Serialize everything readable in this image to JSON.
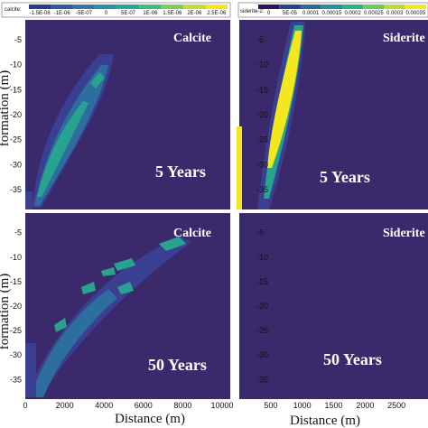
{
  "chart_data": [
    {
      "type": "heatmap",
      "panel": "top-left",
      "mineral_label": "Calcite",
      "time_label": "5 Years",
      "colorbar_label": "calcite:",
      "colorbar_ticks": [
        "-1.5E-06",
        "-1E-06",
        "-5E-07",
        "0",
        "5E-07",
        "1E-06",
        "1.5E-06",
        "2E-06",
        "2.5E-06"
      ],
      "colorbar_colors": [
        "#2a3c86",
        "#2f5b9e",
        "#3573a8",
        "#2d8fa6",
        "#23a797",
        "#3bbd7e",
        "#7ccf56",
        "#c2dd34",
        "#f4e61f"
      ],
      "ylabel": "formation (m)",
      "yticks": [
        "-5",
        "-10",
        "-15",
        "-20",
        "-25",
        "-30",
        "-35"
      ],
      "xlim": [
        0,
        10000
      ],
      "ylim": [
        -39,
        -1
      ]
    },
    {
      "type": "heatmap",
      "panel": "top-right",
      "mineral_label": "Siderite",
      "time_label": "5 Years",
      "colorbar_label": "siderite-2:",
      "colorbar_ticks": [
        "0",
        "5E-05",
        "0.0001",
        "0.00015",
        "0.0002",
        "0.00025",
        "0.0003",
        "0.00035"
      ],
      "colorbar_colors": [
        "#30115a",
        "#2c3f8a",
        "#2b6a98",
        "#27909a",
        "#2ab383",
        "#6acb5b",
        "#b9dc35",
        "#f4e61f"
      ],
      "yticks": [
        "-5",
        "-10",
        "-15",
        "-20",
        "-25",
        "-30",
        "-35"
      ],
      "xlim": [
        0,
        3000
      ],
      "ylim": [
        -39,
        -1
      ]
    },
    {
      "type": "heatmap",
      "panel": "bottom-left",
      "mineral_label": "Calcite",
      "time_label": "50 Years",
      "ylabel": "formation (m)",
      "xlabel": "Distance (m)",
      "xticks": [
        "0",
        "2000",
        "4000",
        "6000",
        "8000",
        "10000"
      ],
      "yticks": [
        "-5",
        "-10",
        "-15",
        "-20",
        "-25",
        "-30",
        "-35"
      ],
      "xlim": [
        0,
        10000
      ],
      "ylim": [
        -39,
        -1
      ]
    },
    {
      "type": "heatmap",
      "panel": "bottom-right",
      "mineral_label": "Siderite",
      "time_label": "50 Years",
      "xlabel": "Distance (m)",
      "xticks": [
        "500",
        "1000",
        "1500",
        "2000",
        "2500"
      ],
      "yticks": [
        "-5",
        "-10",
        "-15",
        "-20",
        "-25",
        "-30",
        "-35"
      ],
      "xlim": [
        0,
        3000
      ],
      "ylim": [
        -39,
        -1
      ]
    }
  ],
  "colors": {
    "background_field": "#3b2a6b",
    "low_band": "#3a3f92",
    "mid_band": "#2e6e9e",
    "high_band": "#27a38f",
    "peak": "#f4e61f"
  }
}
